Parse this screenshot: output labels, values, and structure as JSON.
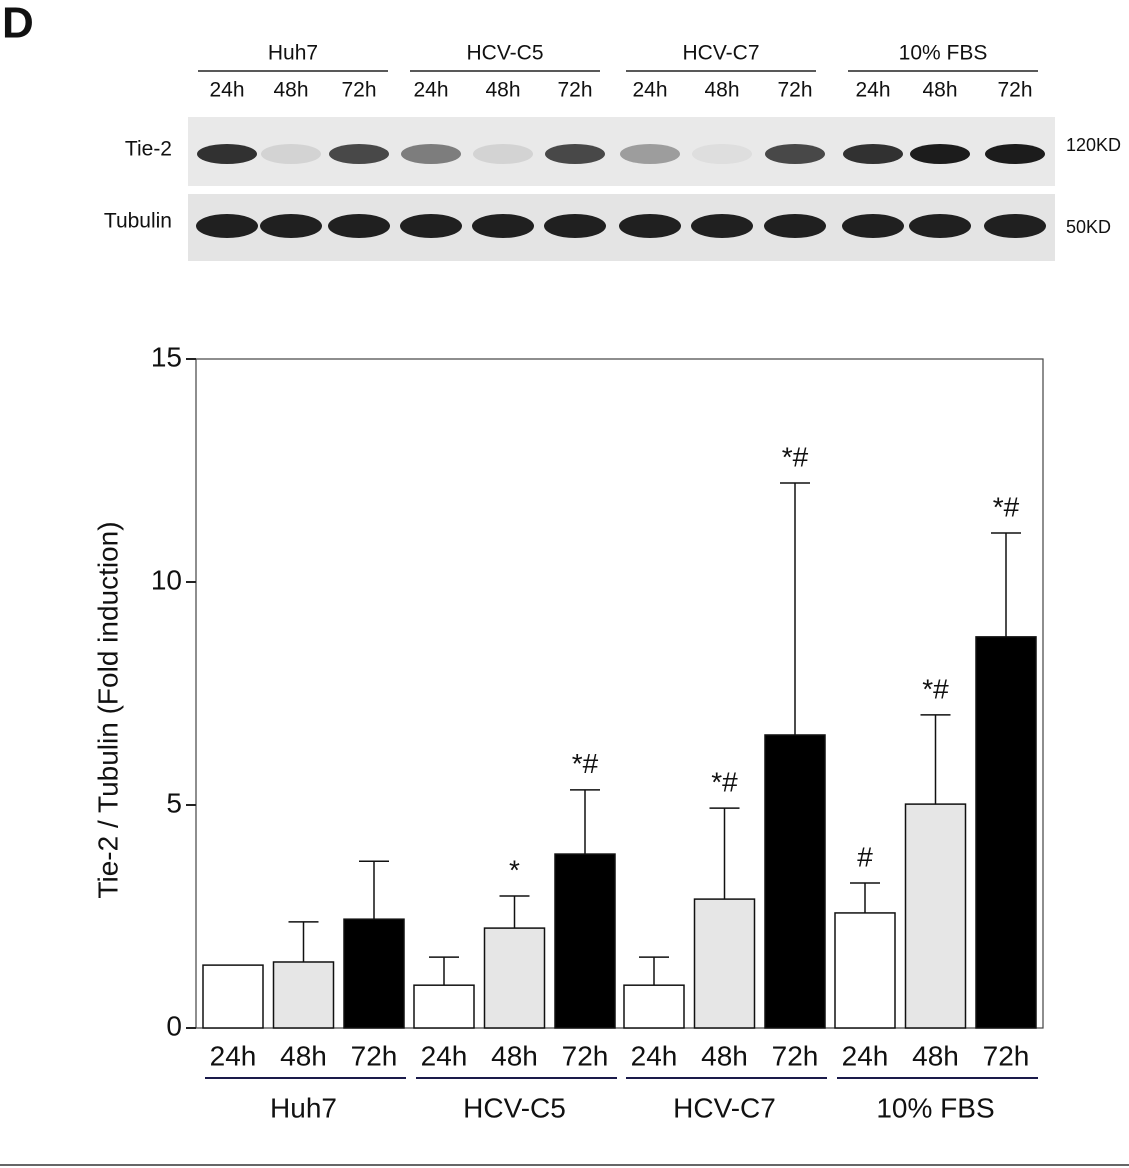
{
  "panel": "D",
  "blot": {
    "groups": [
      "Huh7",
      "HCV-C5",
      "HCV-C7",
      "10% FBS"
    ],
    "lanes": [
      "24h",
      "48h",
      "72h"
    ],
    "rows": [
      {
        "label": "Tie-2",
        "size": "120KD"
      },
      {
        "label": "Tubulin",
        "size": "50KD"
      }
    ]
  },
  "chart_data": {
    "type": "bar",
    "y_label": "Tie-2 / Tubulin (Fold induction)",
    "groups": [
      "Huh7",
      "HCV-C5",
      "HCV-C7",
      "10% FBS"
    ],
    "series": [
      {
        "name": "24h",
        "color": "#ffffff",
        "values": [
          1.41,
          0.96,
          0.96,
          2.58
        ],
        "errors": [
          null,
          0.63,
          0.63,
          0.67
        ],
        "annotations": [
          null,
          null,
          null,
          "#"
        ]
      },
      {
        "name": "48h",
        "color": "#e6e6e6",
        "values": [
          1.48,
          2.24,
          2.89,
          5.02
        ],
        "errors": [
          0.9,
          0.72,
          2.04,
          2.0
        ],
        "annotations": [
          null,
          "*",
          "*#",
          "*#"
        ]
      },
      {
        "name": "72h",
        "color": "#000000",
        "values": [
          2.44,
          3.9,
          6.57,
          8.77
        ],
        "errors": [
          1.3,
          1.44,
          5.65,
          2.33
        ],
        "annotations": [
          null,
          "*#",
          "*#",
          "*#"
        ]
      }
    ],
    "ylim": [
      0,
      15
    ],
    "yticks": [
      0,
      5,
      10,
      15
    ]
  }
}
